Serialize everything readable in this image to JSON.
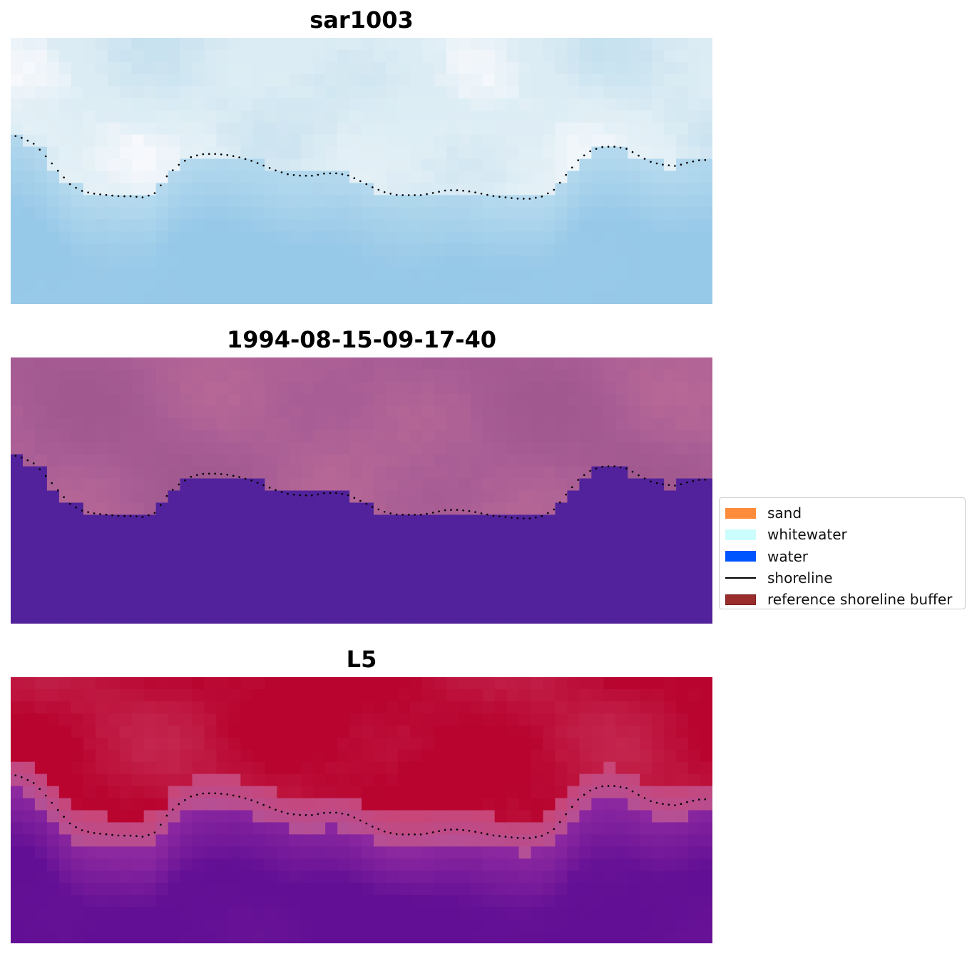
{
  "chart_data": [
    {
      "type": "heatmap",
      "title": "sar1003",
      "grid_cols": 58,
      "grid_rows": 22,
      "image": "pale blue / white imagery",
      "shoreline_style": "dotted",
      "shoreline_color": "#000000"
    },
    {
      "type": "heatmap",
      "title": "1994-08-15-09-17-40",
      "grid_cols": 58,
      "grid_rows": 22,
      "image": "classified mask: mauve land above, dark purple water below",
      "land_color": "#a95e95",
      "water_color": "#51229b",
      "shoreline_style": "dotted",
      "shoreline_color": "#000000"
    },
    {
      "type": "heatmap",
      "title": "L5",
      "grid_cols": 58,
      "grid_rows": 22,
      "image": "red (high) above shoreline grading to purple (low) below",
      "high_color": "#b8042f",
      "low_color": "#620f95",
      "shoreline_style": "dotted",
      "shoreline_color": "#000000"
    }
  ],
  "shoreline": {
    "note": "shoreline y-values in grid rows (0 = top, 22 = bottom), sampled at x grid columns",
    "x": [
      0,
      1,
      2,
      3,
      4,
      5,
      6,
      7,
      8,
      9,
      10,
      11,
      12,
      13,
      14,
      15,
      16,
      17,
      18,
      19,
      20,
      21,
      22,
      23,
      24,
      25,
      26,
      27,
      28,
      29,
      30,
      31,
      32,
      33,
      34,
      35,
      36,
      37,
      38,
      39,
      40,
      41,
      42,
      43,
      44,
      45,
      46,
      47,
      48,
      49,
      50,
      51,
      52,
      53,
      54,
      55,
      56,
      57,
      58
    ],
    "y": [
      8.0,
      8.3,
      8.8,
      9.9,
      11.1,
      12.2,
      12.7,
      12.9,
      13.0,
      13.1,
      13.1,
      13.2,
      12.8,
      11.3,
      10.4,
      9.8,
      9.6,
      9.6,
      9.7,
      9.9,
      10.2,
      10.6,
      11.0,
      11.3,
      11.4,
      11.4,
      11.2,
      11.2,
      11.4,
      11.9,
      12.4,
      12.8,
      13.0,
      13.0,
      13.0,
      12.8,
      12.6,
      12.6,
      12.7,
      12.9,
      13.1,
      13.2,
      13.3,
      13.3,
      13.1,
      12.5,
      11.2,
      10.0,
      9.3,
      9.0,
      9.0,
      9.2,
      9.8,
      10.3,
      10.5,
      10.6,
      10.3,
      10.1,
      10.1
    ]
  },
  "legend": {
    "items": [
      {
        "label": "sand",
        "color": "#ff8c3a",
        "kind": "patch"
      },
      {
        "label": "whitewater",
        "color": "#ccfdfd",
        "kind": "patch"
      },
      {
        "label": "water",
        "color": "#0055ff",
        "kind": "patch"
      },
      {
        "label": "shoreline",
        "color": "#000000",
        "kind": "line"
      },
      {
        "label": "reference shoreline buffer",
        "color": "#9a2c2c",
        "kind": "patch"
      }
    ],
    "placement": "center-right"
  }
}
